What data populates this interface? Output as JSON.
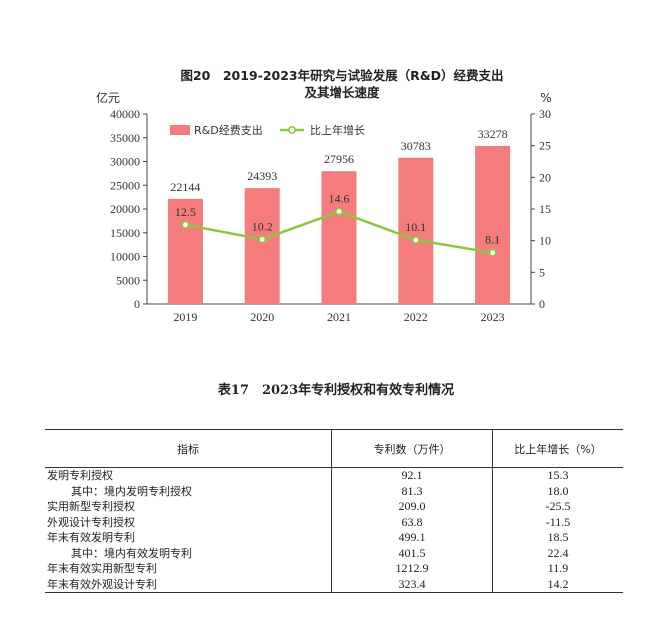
{
  "chart_data": {
    "type": "bar",
    "title_line1": "图20　2019-2023年研究与试验发展（R&D）经费支出",
    "title_line2": "及其增长速度",
    "y_left_unit": "亿元",
    "y_right_unit": "%",
    "categories": [
      "2019",
      "2020",
      "2021",
      "2022",
      "2023"
    ],
    "ylim": [
      0,
      40000
    ],
    "y2lim": [
      0,
      30
    ],
    "y_ticks": [
      "0",
      "5000",
      "10000",
      "15000",
      "20000",
      "25000",
      "30000",
      "35000",
      "40000"
    ],
    "y2_ticks": [
      "0",
      "5",
      "10",
      "15",
      "20",
      "25",
      "30"
    ],
    "legend_placement": "top-left",
    "series": [
      {
        "name": "R&D经费支出",
        "kind": "bar",
        "axis": "left",
        "color": "#f47c7c",
        "values": [
          22144,
          24393,
          27956,
          30783,
          33278
        ],
        "labels": [
          "22144",
          "24393",
          "27956",
          "30783",
          "33278"
        ]
      },
      {
        "name": "比上年增长",
        "kind": "line",
        "axis": "right",
        "color": "#8cc63f",
        "values": [
          12.5,
          10.2,
          14.6,
          10.1,
          8.1
        ],
        "labels": [
          "12.5",
          "10.2",
          "14.6",
          "10.1",
          "8.1"
        ]
      }
    ]
  },
  "table": {
    "title": "表17　2023年专利授权和有效专利情况",
    "headers": [
      "指标",
      "专利数（万件）",
      "比上年增长（%）"
    ],
    "rows": [
      {
        "label": "发明专利授权",
        "value": "92.1",
        "growth": "15.3",
        "indent": false
      },
      {
        "label": "其中：境内发明专利授权",
        "value": "81.3",
        "growth": "18.0",
        "indent": true
      },
      {
        "label": "实用新型专利授权",
        "value": "209.0",
        "growth": "-25.5",
        "indent": false
      },
      {
        "label": "外观设计专利授权",
        "value": "63.8",
        "growth": "-11.5",
        "indent": false
      },
      {
        "label": "年末有效发明专利",
        "value": "499.1",
        "growth": "18.5",
        "indent": false
      },
      {
        "label": "其中：境内有效发明专利",
        "value": "401.5",
        "growth": "22.4",
        "indent": true
      },
      {
        "label": "年末有效实用新型专利",
        "value": "1212.9",
        "growth": "11.9",
        "indent": false
      },
      {
        "label": "年末有效外观设计专利",
        "value": "323.4",
        "growth": "14.2",
        "indent": false
      }
    ]
  }
}
